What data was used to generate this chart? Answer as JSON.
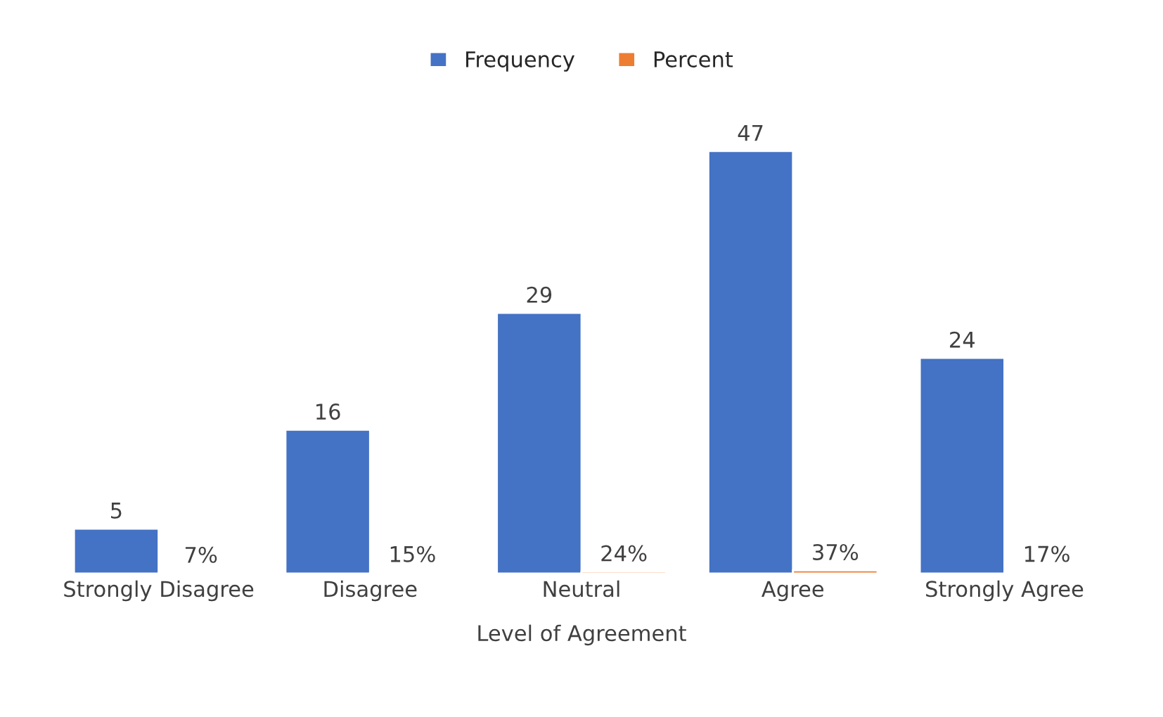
{
  "chart_data": {
    "type": "bar",
    "xlabel": "Level of Agreement",
    "categories": [
      "Strongly Disagree",
      "Disagree",
      "Neutral",
      "Agree",
      "Strongly Agree"
    ],
    "series": [
      {
        "name": "Frequency",
        "color": "#4472c4",
        "values": [
          5,
          16,
          29,
          47,
          24
        ],
        "value_labels": [
          "5",
          "16",
          "29",
          "47",
          "24"
        ]
      },
      {
        "name": "Percent",
        "color": "#ed7d31",
        "values": [
          0.07,
          0.15,
          0.24,
          0.37,
          0.17
        ],
        "value_labels": [
          "7%",
          "15%",
          "24%",
          "37%",
          "17%"
        ]
      }
    ],
    "legend": "top",
    "grid": false
  }
}
